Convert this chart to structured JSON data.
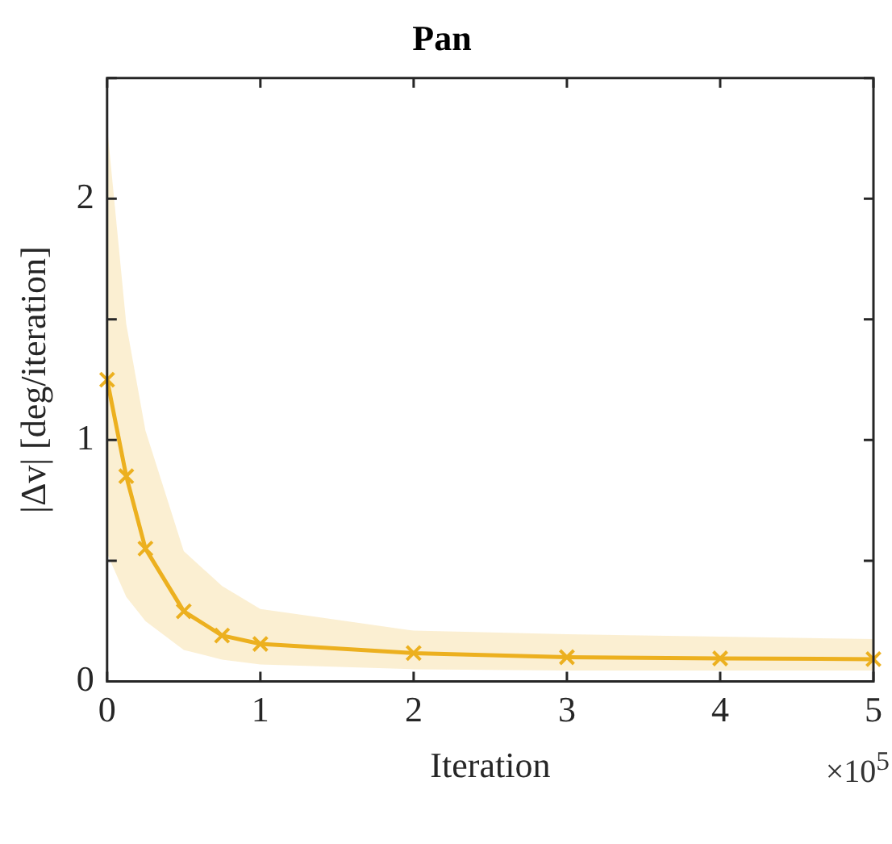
{
  "chart_data": {
    "type": "line",
    "title": "Pan",
    "xlabel": "Iteration",
    "ylabel": "|Δv| [deg/iteration]",
    "annotations": [
      "×10$^{5}$"
    ],
    "x": [
      0,
      0.125,
      0.25,
      0.5,
      0.75,
      1,
      2,
      3,
      4,
      5
    ],
    "series": [
      {
        "color": "#edb120",
        "values": [
          1.25,
          0.85,
          0.55,
          0.29,
          0.19,
          0.155,
          0.117,
          0.1,
          0.095,
          0.092
        ],
        "lower": [
          0.53,
          0.35,
          0.25,
          0.13,
          0.09,
          0.07,
          0.05,
          0.045,
          0.045,
          0.045
        ],
        "upper": [
          2.3,
          1.48,
          1.04,
          0.54,
          0.395,
          0.3,
          0.21,
          0.195,
          0.185,
          0.175
        ]
      }
    ],
    "xlim": [
      0,
      5
    ],
    "xticks": [
      0,
      1,
      2,
      3,
      4,
      5
    ],
    "ylim": [
      0,
      2.5
    ],
    "yticks": [
      0,
      {
        "value": 0.5,
        "label": null
      },
      1,
      {
        "value": 1.5,
        "label": null
      },
      2,
      {
        "value": 2.5,
        "label": null
      }
    ],
    "grid": false,
    "legend": false,
    "marker": "cross",
    "line_style": "solid"
  }
}
